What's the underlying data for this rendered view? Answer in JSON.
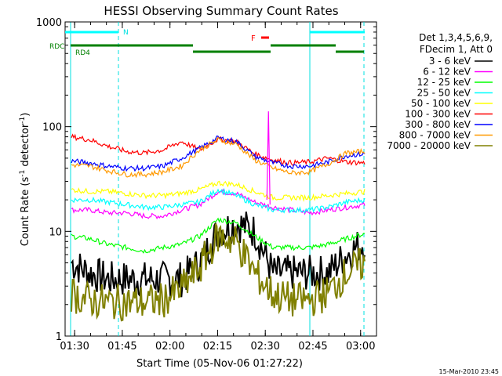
{
  "chart_data": {
    "type": "line",
    "title": "HESSI Observing Summary Count Rates",
    "xlabel": "Start Time (05-Nov-06 01:27:22)",
    "ylabel_main": "Count Rate (s",
    "ylabel_sup1": "-1",
    "ylabel_mid": " detector",
    "ylabel_sup2": "-1",
    "ylabel_end": ")",
    "footer": "15-Mar-2010 23:45",
    "y_scale": "log",
    "ylim": [
      1,
      1000
    ],
    "xlim": [
      "01:27",
      "03:05"
    ],
    "x_ticks": [
      "01:30",
      "01:45",
      "02:00",
      "02:15",
      "02:30",
      "02:45",
      "03:00"
    ],
    "y_ticks": [
      "1",
      "10",
      "100",
      "1000"
    ],
    "legend_header": [
      "Det 1,3,4,5,6,9,",
      "FDecim 1, Att 0"
    ],
    "legend_position": "right",
    "flags": {
      "N": "N",
      "F": "F",
      "RDC": "RDC",
      "RD4": "RD4"
    },
    "series": [
      {
        "name": "3 - 6 keV",
        "color": "#000000",
        "values": [
          5,
          4,
          3.5,
          3.5,
          3.5,
          3.5,
          3.5,
          5,
          10,
          12,
          10,
          4,
          4,
          4,
          4,
          6,
          8
        ]
      },
      {
        "name": "6 - 12 keV",
        "color": "#ff00ff",
        "values": [
          16,
          16,
          15,
          15,
          14,
          14,
          16,
          18,
          24,
          23,
          19,
          17,
          16,
          15,
          16,
          17,
          18
        ]
      },
      {
        "name": "12 - 25 keV",
        "color": "#00ff00",
        "values": [
          9,
          8.5,
          7.5,
          7,
          6.5,
          7,
          7.5,
          9,
          13,
          12,
          9,
          7,
          7,
          7,
          7.5,
          8.5,
          9.5
        ]
      },
      {
        "name": "25 - 50 keV",
        "color": "#00ffff",
        "values": [
          20,
          20,
          19,
          18,
          17,
          17,
          18,
          19,
          25,
          22,
          18,
          16,
          16,
          16,
          17,
          19,
          20
        ]
      },
      {
        "name": "50 - 100 keV",
        "color": "#ffff00",
        "values": [
          25,
          24,
          24,
          23,
          22,
          22,
          23,
          25,
          29,
          28,
          24,
          21,
          21,
          21,
          22,
          23,
          24
        ]
      },
      {
        "name": "100 - 300 keV",
        "color": "#ff0000",
        "values": [
          80,
          75,
          65,
          58,
          56,
          60,
          72,
          60,
          76,
          72,
          55,
          48,
          45,
          46,
          50,
          46,
          45
        ]
      },
      {
        "name": "300 - 800 keV",
        "color": "#0000ff",
        "values": [
          47,
          45,
          42,
          40,
          40,
          42,
          50,
          62,
          78,
          72,
          52,
          45,
          42,
          42,
          46,
          53,
          55
        ]
      },
      {
        "name": "800 - 7000 keV",
        "color": "#ff9900",
        "values": [
          43,
          42,
          38,
          35,
          35,
          37,
          42,
          60,
          75,
          68,
          48,
          40,
          36,
          37,
          44,
          56,
          58
        ]
      },
      {
        "name": "7000 - 20000 keV",
        "color": "#808000",
        "values": [
          2.5,
          2.2,
          2.1,
          2.1,
          2.1,
          2.2,
          2.8,
          4.5,
          9,
          8,
          4,
          2.5,
          2.2,
          2.2,
          2.6,
          4,
          5
        ]
      }
    ]
  }
}
